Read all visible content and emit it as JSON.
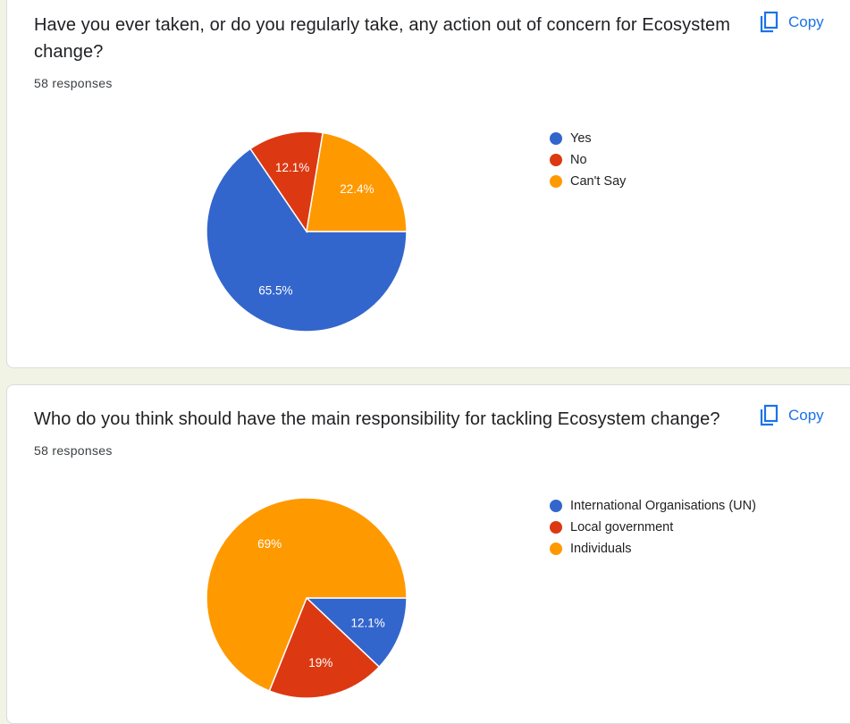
{
  "copy_label": "Copy",
  "icons": {
    "copy": "copy-icon"
  },
  "chart_data": [
    {
      "type": "pie",
      "title": "Have you ever taken, or do you regularly take, any action out of concern for Ecosystem change?",
      "responses": "58 responses",
      "categories": [
        "Yes",
        "No",
        "Can't Say"
      ],
      "values": [
        65.5,
        12.1,
        22.4
      ],
      "labels": [
        "65.5%",
        "12.1%",
        "22.4%"
      ],
      "colors": [
        "#3366cc",
        "#dc3912",
        "#ff9900"
      ],
      "legend_position": "right"
    },
    {
      "type": "pie",
      "title": "Who do you think should have the main responsibility for tackling Ecosystem change?",
      "responses": "58 responses",
      "categories": [
        "International Organisations (UN)",
        "Local government",
        "Individuals"
      ],
      "values": [
        12.1,
        19,
        69
      ],
      "labels": [
        "12.1%",
        "19%",
        "69%"
      ],
      "colors": [
        "#3366cc",
        "#dc3912",
        "#ff9900"
      ],
      "legend_position": "right"
    }
  ]
}
